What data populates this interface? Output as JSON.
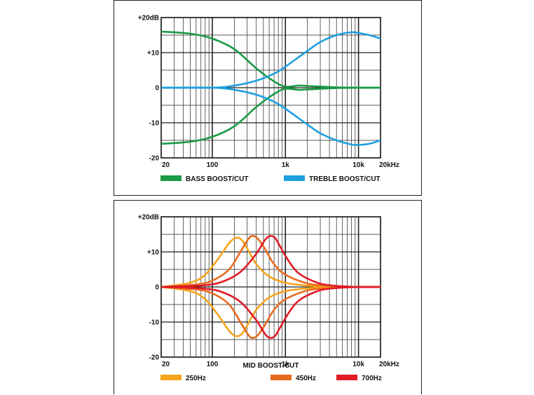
{
  "chart_data": [
    {
      "type": "line",
      "title": "",
      "xlabel": "",
      "ylabel": "",
      "xscale": "log",
      "xlim": [
        20,
        20000
      ],
      "ylim": [
        -20,
        20
      ],
      "x_tick_labels": [
        "20",
        "100",
        "1k",
        "10k",
        "20kHz"
      ],
      "x_tick_values": [
        20,
        100,
        1000,
        10000,
        20000
      ],
      "y_tick_labels": [
        "+20dB",
        "+10",
        "0",
        "-10",
        "-20"
      ],
      "y_tick_values": [
        20,
        10,
        0,
        -10,
        -20
      ],
      "grid": true,
      "legend_position": "bottom",
      "series": [
        {
          "name": "BASS BOOST/CUT",
          "color": "#1a9a46",
          "x": [
            20,
            50,
            100,
            200,
            400,
            700,
            1000,
            1500,
            2000,
            5000,
            10000,
            20000
          ],
          "values": [
            16,
            15.4,
            14,
            11,
            5.5,
            1.8,
            0.3,
            0.6,
            0.5,
            0.1,
            0,
            0
          ]
        },
        {
          "name": "BASS BOOST/CUT",
          "color": "#1a9a46",
          "x": [
            20,
            50,
            100,
            200,
            400,
            700,
            1000,
            1500,
            2000,
            5000,
            10000,
            20000
          ],
          "values": [
            -16,
            -15.4,
            -14,
            -11,
            -5.5,
            -1.8,
            -0.3,
            -0.6,
            -0.5,
            -0.1,
            0,
            0
          ]
        },
        {
          "name": "TREBLE BOOST/CUT",
          "color": "#1d9fe0",
          "x": [
            20,
            100,
            200,
            400,
            700,
            1000,
            2000,
            3000,
            5000,
            8000,
            10000,
            14000,
            20000
          ],
          "values": [
            0,
            0,
            0.6,
            2,
            4,
            6,
            10.5,
            13,
            15,
            15.8,
            15.6,
            15,
            14
          ]
        },
        {
          "name": "TREBLE BOOST/CUT",
          "color": "#1d9fe0",
          "x": [
            20,
            100,
            200,
            400,
            700,
            1000,
            2000,
            3000,
            5000,
            8000,
            10000,
            14000,
            20000
          ],
          "values": [
            0,
            0,
            -0.6,
            -2,
            -4,
            -6,
            -10.5,
            -13,
            -15,
            -16.2,
            -16.3,
            -16,
            -15
          ]
        }
      ],
      "legend": [
        {
          "label": "BASS BOOST/CUT",
          "color": "#1a9a46"
        },
        {
          "label": "TREBLE BOOST/CUT",
          "color": "#1d9fe0"
        }
      ]
    },
    {
      "type": "line",
      "title": "MID BOOST/CUT",
      "xlabel": "MID BOOST/CUT",
      "ylabel": "",
      "xscale": "log",
      "xlim": [
        20,
        20000
      ],
      "ylim": [
        -20,
        20
      ],
      "x_tick_labels": [
        "20",
        "100",
        "1k",
        "10k",
        "20kHz"
      ],
      "x_tick_values": [
        20,
        100,
        1000,
        10000,
        20000
      ],
      "y_tick_labels": [
        "+20dB",
        "+10",
        "0",
        "-10",
        "-20"
      ],
      "y_tick_values": [
        20,
        10,
        0,
        -10,
        -20
      ],
      "grid": true,
      "legend_position": "bottom",
      "series": [
        {
          "name": "250Hz",
          "color": "#f5a41c",
          "x": [
            20,
            50,
            80,
            120,
            170,
            210,
            250,
            300,
            400,
            600,
            1000,
            2000,
            4000,
            10000,
            20000
          ],
          "values": [
            0,
            1.2,
            3.5,
            8,
            12.5,
            14,
            13.5,
            11,
            6.5,
            3,
            1.2,
            0.4,
            0.1,
            0,
            0
          ]
        },
        {
          "name": "250Hz",
          "color": "#f5a41c",
          "x": [
            20,
            50,
            80,
            120,
            170,
            210,
            250,
            300,
            400,
            600,
            1000,
            2000,
            4000,
            10000,
            20000
          ],
          "values": [
            0,
            -1.2,
            -3.5,
            -8,
            -12.5,
            -14,
            -13.5,
            -11,
            -6.5,
            -3,
            -1.2,
            -0.4,
            -0.1,
            0,
            0
          ]
        },
        {
          "name": "450Hz",
          "color": "#e86a1c",
          "x": [
            20,
            60,
            100,
            170,
            250,
            320,
            370,
            430,
            520,
            700,
            1000,
            2000,
            4000,
            10000,
            20000
          ],
          "values": [
            0,
            0.7,
            1.8,
            5,
            10.5,
            14,
            14.5,
            13.5,
            11,
            6.5,
            3.5,
            1,
            0.3,
            0,
            0
          ]
        },
        {
          "name": "450Hz",
          "color": "#e86a1c",
          "x": [
            20,
            60,
            100,
            170,
            250,
            320,
            370,
            430,
            520,
            700,
            1000,
            2000,
            4000,
            10000,
            20000
          ],
          "values": [
            0,
            -0.7,
            -1.8,
            -5,
            -10.5,
            -14,
            -14.5,
            -13.5,
            -11,
            -6.5,
            -3.5,
            -1,
            -0.3,
            0,
            0
          ]
        },
        {
          "name": "700Hz",
          "color": "#e01b26",
          "x": [
            20,
            80,
            150,
            250,
            400,
            530,
            620,
            720,
            850,
            1100,
            1500,
            2500,
            4000,
            10000,
            20000
          ],
          "values": [
            0,
            0.5,
            1.8,
            4.5,
            9.5,
            13.5,
            14.5,
            14,
            11.5,
            7.5,
            4,
            1.5,
            0.5,
            0,
            0
          ]
        },
        {
          "name": "700Hz",
          "color": "#e01b26",
          "x": [
            20,
            80,
            150,
            250,
            400,
            530,
            620,
            720,
            850,
            1100,
            1500,
            2500,
            4000,
            10000,
            20000
          ],
          "values": [
            0,
            -0.5,
            -1.8,
            -4.5,
            -9.5,
            -13.5,
            -14.5,
            -14,
            -11.5,
            -7.5,
            -4,
            -1.5,
            -0.5,
            0,
            0
          ]
        }
      ],
      "legend": [
        {
          "label": "250Hz",
          "color": "#f5a41c"
        },
        {
          "label": "450Hz",
          "color": "#e86a1c"
        },
        {
          "label": "700Hz",
          "color": "#e01b26"
        }
      ]
    }
  ]
}
